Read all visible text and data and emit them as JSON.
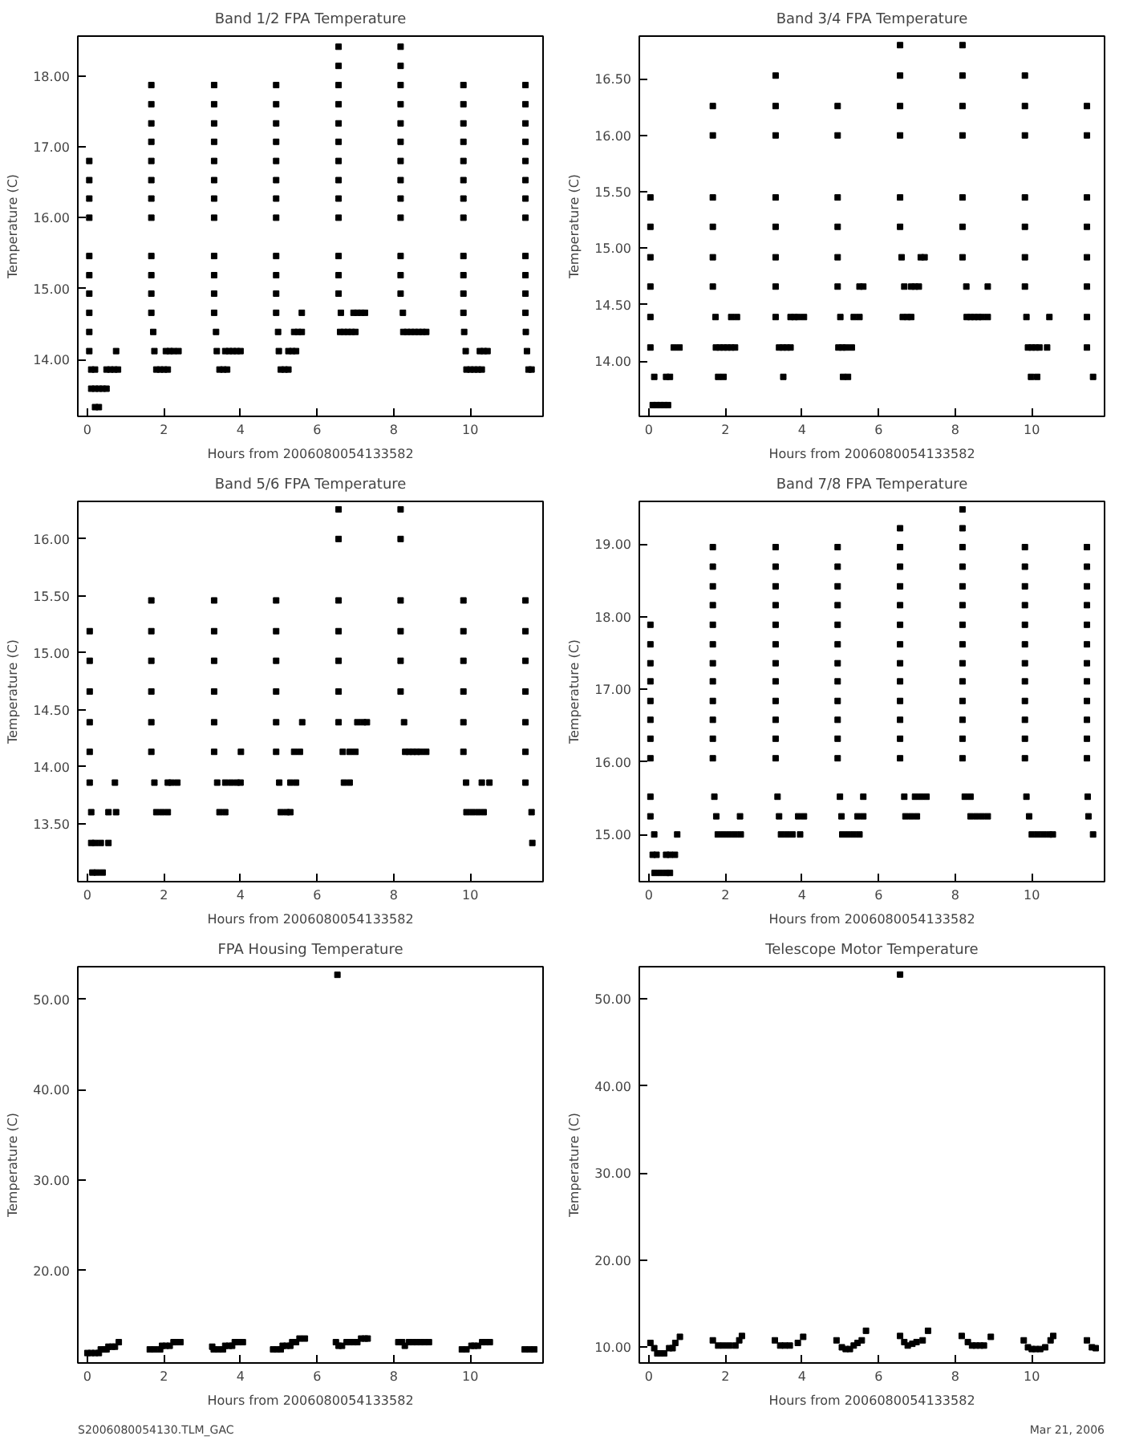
{
  "chart_data": [
    {
      "type": "scatter",
      "title": "Band 1/2 FPA Temperature",
      "xlabel": "Hours from 2006080054133582",
      "ylabel": "Temperature (C)",
      "marker": "square",
      "xlim": [
        -0.25,
        11.9
      ],
      "xticks": [
        0,
        2,
        4,
        6,
        8,
        10
      ],
      "ylim": [
        13.2,
        18.56
      ],
      "yticks": [
        {
          "value": 14,
          "label": "14.00"
        },
        {
          "value": 15,
          "label": "15.00"
        },
        {
          "value": 16,
          "label": "16.00"
        },
        {
          "value": 17,
          "label": "17.00"
        },
        {
          "value": 18,
          "label": "18.00"
        }
      ],
      "series": [
        {
          "color": "#000000",
          "x": [
            0.05,
            0.05,
            0.05,
            0.05,
            0.05,
            0.05,
            0.05,
            0.05,
            0.05,
            0.05,
            0.1,
            0.2,
            0.1,
            0.2,
            0.3,
            0.4,
            0.5,
            0.2,
            0.3,
            0.5,
            0.6,
            0.7,
            0.8,
            0.75
          ],
          "values": [
            16.8,
            16.53,
            16.27,
            16.0,
            15.46,
            15.19,
            14.93,
            14.66,
            14.39,
            14.12,
            13.86,
            13.86,
            13.59,
            13.59,
            13.59,
            13.59,
            13.59,
            13.33,
            13.33,
            13.86,
            13.86,
            13.86,
            13.86,
            14.12
          ]
        },
        {
          "color": "#000000",
          "x": [
            1.67,
            1.67,
            1.67,
            1.67,
            1.67,
            1.67,
            1.67,
            1.67,
            1.67,
            1.67,
            1.67,
            1.67,
            1.72,
            1.75,
            1.8,
            1.9,
            2.0,
            2.1,
            2.05,
            2.15,
            2.25,
            2.38
          ],
          "values": [
            17.87,
            17.6,
            17.33,
            17.07,
            16.8,
            16.53,
            16.27,
            16.0,
            15.46,
            15.19,
            14.93,
            14.66,
            14.39,
            14.12,
            13.86,
            13.86,
            13.86,
            13.86,
            14.12,
            14.12,
            14.12,
            14.12
          ]
        },
        {
          "color": "#000000",
          "x": [
            3.31,
            3.31,
            3.31,
            3.31,
            3.31,
            3.31,
            3.31,
            3.31,
            3.31,
            3.31,
            3.31,
            3.31,
            3.36,
            3.38,
            3.45,
            3.55,
            3.65,
            3.6,
            3.7,
            3.8,
            3.9,
            4.0
          ],
          "values": [
            17.87,
            17.6,
            17.33,
            17.07,
            16.8,
            16.53,
            16.27,
            16.0,
            15.46,
            15.19,
            14.93,
            14.66,
            14.39,
            14.12,
            13.86,
            13.86,
            13.86,
            14.12,
            14.12,
            14.12,
            14.12,
            14.12
          ]
        },
        {
          "color": "#000000",
          "x": [
            4.93,
            4.93,
            4.93,
            4.93,
            4.93,
            4.93,
            4.93,
            4.93,
            4.93,
            4.93,
            4.93,
            4.93,
            4.98,
            5.0,
            5.05,
            5.15,
            5.25,
            5.25,
            5.35,
            5.45,
            5.4,
            5.5,
            5.6,
            5.6
          ],
          "values": [
            17.87,
            17.6,
            17.33,
            17.07,
            16.8,
            16.53,
            16.27,
            16.0,
            15.46,
            15.19,
            14.93,
            14.66,
            14.39,
            14.12,
            13.86,
            13.86,
            13.86,
            14.12,
            14.12,
            14.12,
            14.39,
            14.39,
            14.39,
            14.66
          ]
        },
        {
          "color": "#000000",
          "x": [
            6.56,
            6.56,
            6.56,
            6.56,
            6.56,
            6.56,
            6.56,
            6.56,
            6.56,
            6.56,
            6.56,
            6.56,
            6.56,
            6.62,
            6.6,
            6.7,
            6.8,
            6.9,
            7.0,
            6.95,
            7.05,
            7.15,
            7.25
          ],
          "values": [
            18.41,
            18.14,
            17.87,
            17.6,
            17.33,
            17.07,
            16.8,
            16.53,
            16.27,
            16.0,
            15.46,
            15.19,
            14.93,
            14.66,
            14.39,
            14.39,
            14.39,
            14.39,
            14.39,
            14.66,
            14.66,
            14.66,
            14.66
          ]
        },
        {
          "color": "#000000",
          "x": [
            8.18,
            8.18,
            8.18,
            8.18,
            8.18,
            8.18,
            8.18,
            8.18,
            8.18,
            8.18,
            8.18,
            8.18,
            8.18,
            8.24,
            8.25,
            8.35,
            8.45,
            8.55,
            8.65,
            8.75,
            8.85
          ],
          "values": [
            18.41,
            18.14,
            17.87,
            17.6,
            17.33,
            17.07,
            16.8,
            16.53,
            16.27,
            16.0,
            15.46,
            15.19,
            14.93,
            14.66,
            14.39,
            14.39,
            14.39,
            14.39,
            14.39,
            14.39,
            14.39
          ]
        },
        {
          "color": "#000000",
          "x": [
            9.82,
            9.82,
            9.82,
            9.82,
            9.82,
            9.82,
            9.82,
            9.82,
            9.82,
            9.82,
            9.82,
            9.82,
            9.84,
            9.88,
            9.9,
            10.0,
            10.1,
            10.2,
            10.3,
            10.25,
            10.35,
            10.45
          ],
          "values": [
            17.87,
            17.6,
            17.33,
            17.07,
            16.8,
            16.53,
            16.27,
            16.0,
            15.46,
            15.19,
            14.93,
            14.66,
            14.39,
            14.12,
            13.86,
            13.86,
            13.86,
            13.86,
            13.86,
            14.12,
            14.12,
            14.12
          ]
        },
        {
          "color": "#000000",
          "x": [
            11.44,
            11.44,
            11.44,
            11.44,
            11.44,
            11.44,
            11.44,
            11.44,
            11.44,
            11.44,
            11.44,
            11.44,
            11.45,
            11.48,
            11.52,
            11.6
          ],
          "values": [
            17.87,
            17.6,
            17.33,
            17.07,
            16.8,
            16.53,
            16.27,
            16.0,
            15.46,
            15.19,
            14.93,
            14.66,
            14.39,
            14.12,
            13.86,
            13.86
          ]
        }
      ]
    },
    {
      "type": "scatter",
      "title": "Band 3/4 FPA Temperature",
      "xlabel": "Hours from 2006080054133582",
      "ylabel": "Temperature (C)",
      "marker": "square",
      "xlim": [
        -0.25,
        11.9
      ],
      "xticks": [
        0,
        2,
        4,
        6,
        8,
        10
      ],
      "ylim": [
        13.51,
        16.88
      ],
      "yticks": [
        {
          "value": 14,
          "label": "14.00"
        },
        {
          "value": 14.5,
          "label": "14.50"
        },
        {
          "value": 15,
          "label": "15.00"
        },
        {
          "value": 15.5,
          "label": "15.50"
        },
        {
          "value": 16,
          "label": "16.00"
        },
        {
          "value": 16.5,
          "label": "16.50"
        }
      ],
      "series": [
        {
          "color": "#000000",
          "x": [
            0.04,
            0.04,
            0.04,
            0.04,
            0.04,
            0.04,
            0.14,
            0.1,
            0.2,
            0.3,
            0.4,
            0.5,
            0.45,
            0.55,
            0.65,
            0.8
          ],
          "values": [
            15.45,
            15.19,
            14.92,
            14.66,
            14.39,
            14.12,
            13.86,
            13.61,
            13.61,
            13.61,
            13.61,
            13.61,
            13.86,
            13.86,
            14.12,
            14.12
          ]
        },
        {
          "color": "#000000",
          "x": [
            1.67,
            1.67,
            1.67,
            1.67,
            1.67,
            1.67,
            1.74,
            1.75,
            1.85,
            1.95,
            2.05,
            2.15,
            2.25,
            1.81,
            1.95,
            2.15,
            2.3
          ],
          "values": [
            16.26,
            16.0,
            15.45,
            15.19,
            14.92,
            14.66,
            14.39,
            14.12,
            14.12,
            14.12,
            14.12,
            14.12,
            14.12,
            13.86,
            13.86,
            14.39,
            14.39
          ]
        },
        {
          "color": "#000000",
          "x": [
            3.31,
            3.31,
            3.31,
            3.31,
            3.31,
            3.31,
            3.31,
            3.31,
            3.4,
            3.5,
            3.6,
            3.7,
            3.51,
            3.7,
            3.8,
            3.9,
            4.05
          ],
          "values": [
            16.53,
            16.26,
            16.0,
            15.45,
            15.19,
            14.92,
            14.66,
            14.39,
            14.12,
            14.12,
            14.12,
            14.12,
            13.86,
            14.39,
            14.39,
            14.39,
            14.39
          ]
        },
        {
          "color": "#000000",
          "x": [
            4.93,
            4.93,
            4.93,
            4.93,
            4.93,
            4.93,
            5.0,
            4.95,
            5.05,
            5.15,
            5.3,
            5.07,
            5.2,
            5.35,
            5.5,
            5.5,
            5.6
          ],
          "values": [
            16.26,
            16.0,
            15.45,
            15.19,
            14.92,
            14.66,
            14.39,
            14.12,
            14.12,
            14.12,
            14.12,
            13.86,
            13.86,
            14.39,
            14.39,
            14.66,
            14.66
          ]
        },
        {
          "color": "#000000",
          "x": [
            6.56,
            6.56,
            6.56,
            6.56,
            6.56,
            6.56,
            6.6,
            6.67,
            6.63,
            6.75,
            6.85,
            6.85,
            6.95,
            7.05,
            7.1,
            7.2
          ],
          "values": [
            16.8,
            16.53,
            16.26,
            16.0,
            15.45,
            15.19,
            14.92,
            14.66,
            14.39,
            14.39,
            14.39,
            14.66,
            14.66,
            14.66,
            14.92,
            14.92
          ]
        },
        {
          "color": "#000000",
          "x": [
            8.19,
            8.19,
            8.19,
            8.19,
            8.19,
            8.19,
            8.19,
            8.29,
            8.3,
            8.4,
            8.5,
            8.6,
            8.7,
            8.85,
            8.85
          ],
          "values": [
            16.8,
            16.53,
            16.26,
            16.0,
            15.45,
            15.19,
            14.92,
            14.66,
            14.39,
            14.39,
            14.39,
            14.39,
            14.39,
            14.39,
            14.66
          ]
        },
        {
          "color": "#000000",
          "x": [
            9.82,
            9.82,
            9.82,
            9.82,
            9.82,
            9.82,
            9.82,
            9.86,
            9.9,
            10.0,
            10.1,
            10.2,
            10.4,
            9.98,
            10.14,
            10.46
          ],
          "values": [
            16.53,
            16.26,
            16.0,
            15.45,
            15.19,
            14.92,
            14.66,
            14.39,
            14.12,
            14.12,
            14.12,
            14.12,
            14.12,
            13.86,
            13.86,
            14.39
          ]
        },
        {
          "color": "#000000",
          "x": [
            11.44,
            11.44,
            11.44,
            11.44,
            11.44,
            11.44,
            11.44,
            11.44,
            11.6
          ],
          "values": [
            16.26,
            16.0,
            15.45,
            15.19,
            14.92,
            14.66,
            14.39,
            14.12,
            13.86
          ]
        }
      ]
    },
    {
      "type": "scatter",
      "title": "Band 5/6 FPA Temperature",
      "xlabel": "Hours from 2006080054133582",
      "ylabel": "Temperature (C)",
      "marker": "square",
      "xlim": [
        -0.25,
        11.9
      ],
      "xticks": [
        0,
        2,
        4,
        6,
        8,
        10
      ],
      "ylim": [
        12.99,
        16.33
      ],
      "yticks": [
        {
          "value": 13.5,
          "label": "13.50"
        },
        {
          "value": 14,
          "label": "14.00"
        },
        {
          "value": 14.5,
          "label": "14.50"
        },
        {
          "value": 15,
          "label": "15.00"
        },
        {
          "value": 15.5,
          "label": "15.50"
        },
        {
          "value": 16,
          "label": "16.00"
        }
      ],
      "series": [
        {
          "color": "#000000",
          "x": [
            0.06,
            0.06,
            0.06,
            0.06,
            0.06,
            0.06,
            0.1,
            0.1,
            0.2,
            0.13,
            0.25,
            0.4,
            0.35,
            0.55,
            0.55,
            0.75,
            0.72
          ],
          "values": [
            15.19,
            14.93,
            14.66,
            14.39,
            14.13,
            13.86,
            13.6,
            13.33,
            13.33,
            13.07,
            13.07,
            13.07,
            13.33,
            13.33,
            13.6,
            13.6,
            13.86
          ]
        },
        {
          "color": "#000000",
          "x": [
            1.67,
            1.67,
            1.67,
            1.67,
            1.67,
            1.67,
            1.75,
            1.8,
            1.95,
            2.1,
            2.1,
            2.2,
            2.35
          ],
          "values": [
            15.46,
            15.19,
            14.93,
            14.66,
            14.39,
            14.13,
            13.86,
            13.6,
            13.6,
            13.6,
            13.86,
            13.86,
            13.86
          ]
        },
        {
          "color": "#000000",
          "x": [
            3.31,
            3.31,
            3.31,
            3.31,
            3.31,
            3.31,
            3.39,
            3.45,
            3.6,
            3.6,
            3.75,
            3.9,
            4.0,
            4.01
          ],
          "values": [
            15.46,
            15.19,
            14.93,
            14.66,
            14.39,
            14.13,
            13.86,
            13.6,
            13.6,
            13.86,
            13.86,
            13.86,
            13.86,
            14.13
          ]
        },
        {
          "color": "#000000",
          "x": [
            4.93,
            4.93,
            4.93,
            4.93,
            4.93,
            4.93,
            5.01,
            5.05,
            5.2,
            5.3,
            5.3,
            5.45,
            5.4,
            5.55,
            5.61
          ],
          "values": [
            15.46,
            15.19,
            14.93,
            14.66,
            14.39,
            14.13,
            13.86,
            13.6,
            13.6,
            13.6,
            13.86,
            13.86,
            14.13,
            14.13,
            14.39
          ]
        },
        {
          "color": "#000000",
          "x": [
            6.56,
            6.56,
            6.56,
            6.56,
            6.56,
            6.56,
            6.56,
            6.67,
            6.7,
            6.85,
            6.85,
            7.0,
            7.05,
            7.2,
            7.3
          ],
          "values": [
            16.26,
            16.0,
            15.46,
            15.19,
            14.93,
            14.66,
            14.39,
            14.13,
            13.86,
            13.86,
            14.13,
            14.13,
            14.39,
            14.39,
            14.39
          ]
        },
        {
          "color": "#000000",
          "x": [
            8.18,
            8.18,
            8.18,
            8.18,
            8.18,
            8.18,
            8.27,
            8.3,
            8.4,
            8.5,
            8.6,
            8.7,
            8.85
          ],
          "values": [
            16.26,
            16.0,
            15.46,
            15.19,
            14.93,
            14.66,
            14.39,
            14.13,
            14.13,
            14.13,
            14.13,
            14.13,
            14.13
          ]
        },
        {
          "color": "#000000",
          "x": [
            9.82,
            9.82,
            9.82,
            9.82,
            9.82,
            9.82,
            9.89,
            9.9,
            10.05,
            10.2,
            10.35,
            10.3,
            10.5
          ],
          "values": [
            15.46,
            15.19,
            14.93,
            14.66,
            14.39,
            14.13,
            13.86,
            13.6,
            13.6,
            13.6,
            13.6,
            13.86,
            13.86
          ]
        },
        {
          "color": "#000000",
          "x": [
            11.44,
            11.44,
            11.44,
            11.44,
            11.44,
            11.44,
            11.44,
            11.6,
            11.62
          ],
          "values": [
            15.46,
            15.19,
            14.93,
            14.66,
            14.39,
            14.13,
            13.86,
            13.6,
            13.33
          ]
        }
      ]
    },
    {
      "type": "scatter",
      "title": "Band 7/8 FPA Temperature",
      "xlabel": "Hours from 2006080054133582",
      "ylabel": "Temperature (C)",
      "marker": "square",
      "xlim": [
        -0.25,
        11.9
      ],
      "xticks": [
        0,
        2,
        4,
        6,
        8,
        10
      ],
      "ylim": [
        14.35,
        19.59
      ],
      "yticks": [
        {
          "value": 15,
          "label": "15.00"
        },
        {
          "value": 16,
          "label": "16.00"
        },
        {
          "value": 17,
          "label": "17.00"
        },
        {
          "value": 18,
          "label": "18.00"
        },
        {
          "value": 19,
          "label": "19.00"
        }
      ],
      "series": [
        {
          "color": "#000000",
          "x": [
            0.04,
            0.04,
            0.04,
            0.04,
            0.04,
            0.04,
            0.04,
            0.04,
            0.04,
            0.04,
            0.14,
            0.1,
            0.2,
            0.45,
            0.55,
            0.68,
            0.15,
            0.3,
            0.45,
            0.55,
            0.74
          ],
          "values": [
            17.89,
            17.62,
            17.36,
            17.11,
            16.84,
            16.58,
            16.32,
            16.05,
            15.52,
            15.25,
            15.0,
            14.72,
            14.72,
            14.72,
            14.72,
            14.72,
            14.47,
            14.47,
            14.47,
            14.47,
            15.0
          ]
        },
        {
          "color": "#000000",
          "x": [
            1.67,
            1.67,
            1.67,
            1.67,
            1.67,
            1.67,
            1.67,
            1.67,
            1.67,
            1.67,
            1.67,
            1.67,
            1.71,
            1.76,
            1.8,
            1.95,
            2.1,
            2.25,
            2.4,
            2.38
          ],
          "values": [
            18.96,
            18.69,
            18.42,
            18.16,
            17.89,
            17.62,
            17.36,
            17.11,
            16.84,
            16.58,
            16.32,
            16.05,
            15.52,
            15.25,
            15.0,
            15.0,
            15.0,
            15.0,
            15.0,
            15.25
          ]
        },
        {
          "color": "#000000",
          "x": [
            3.31,
            3.31,
            3.31,
            3.31,
            3.31,
            3.31,
            3.31,
            3.31,
            3.31,
            3.31,
            3.31,
            3.31,
            3.36,
            3.4,
            3.45,
            3.6,
            3.75,
            3.95,
            3.9,
            4.05
          ],
          "values": [
            18.96,
            18.69,
            18.42,
            18.16,
            17.89,
            17.62,
            17.36,
            17.11,
            16.84,
            16.58,
            16.32,
            16.05,
            15.52,
            15.25,
            15.0,
            15.0,
            15.0,
            15.0,
            15.25,
            15.25
          ]
        },
        {
          "color": "#000000",
          "x": [
            4.93,
            4.93,
            4.93,
            4.93,
            4.93,
            4.93,
            4.93,
            4.93,
            4.93,
            4.93,
            4.93,
            4.93,
            4.99,
            5.03,
            5.05,
            5.2,
            5.35,
            5.5,
            5.45,
            5.6,
            5.6
          ],
          "values": [
            18.96,
            18.69,
            18.42,
            18.16,
            17.89,
            17.62,
            17.36,
            17.11,
            16.84,
            16.58,
            16.32,
            16.05,
            15.52,
            15.25,
            15.0,
            15.0,
            15.0,
            15.0,
            15.25,
            15.25,
            15.52
          ]
        },
        {
          "color": "#000000",
          "x": [
            6.56,
            6.56,
            6.56,
            6.56,
            6.56,
            6.56,
            6.56,
            6.56,
            6.56,
            6.56,
            6.56,
            6.56,
            6.56,
            6.67,
            6.7,
            6.85,
            7.0,
            6.95,
            7.1,
            7.25
          ],
          "values": [
            19.22,
            18.96,
            18.69,
            18.42,
            18.16,
            17.89,
            17.62,
            17.36,
            17.11,
            16.84,
            16.58,
            16.32,
            16.05,
            15.52,
            15.25,
            15.25,
            15.25,
            15.52,
            15.52,
            15.52
          ]
        },
        {
          "color": "#000000",
          "x": [
            8.19,
            8.19,
            8.19,
            8.19,
            8.19,
            8.19,
            8.19,
            8.19,
            8.19,
            8.19,
            8.19,
            8.19,
            8.19,
            8.19,
            8.25,
            8.4,
            8.4,
            8.55,
            8.7,
            8.85
          ],
          "values": [
            19.48,
            19.22,
            18.96,
            18.69,
            18.42,
            18.16,
            17.89,
            17.62,
            17.36,
            17.11,
            16.84,
            16.58,
            16.32,
            16.05,
            15.52,
            15.52,
            15.25,
            15.25,
            15.25,
            15.25
          ]
        },
        {
          "color": "#000000",
          "x": [
            9.82,
            9.82,
            9.82,
            9.82,
            9.82,
            9.82,
            9.82,
            9.82,
            9.82,
            9.82,
            9.82,
            9.82,
            9.86,
            9.93,
            10.0,
            10.15,
            10.3,
            10.45,
            10.55
          ],
          "values": [
            18.96,
            18.69,
            18.42,
            18.16,
            17.89,
            17.62,
            17.36,
            17.11,
            16.84,
            16.58,
            16.32,
            16.05,
            15.52,
            15.25,
            15.0,
            15.0,
            15.0,
            15.0,
            15.0
          ]
        },
        {
          "color": "#000000",
          "x": [
            11.44,
            11.44,
            11.44,
            11.44,
            11.44,
            11.44,
            11.44,
            11.44,
            11.44,
            11.44,
            11.44,
            11.44,
            11.46,
            11.48,
            11.6
          ],
          "values": [
            18.96,
            18.69,
            18.42,
            18.16,
            17.89,
            17.62,
            17.36,
            17.11,
            16.84,
            16.58,
            16.32,
            16.05,
            15.52,
            15.25,
            15.0
          ]
        }
      ]
    },
    {
      "type": "scatter",
      "title": "FPA Housing Temperature",
      "xlabel": "Hours from 2006080054133582",
      "ylabel": "Temperature (C)",
      "marker": "square",
      "xlim": [
        -0.25,
        11.9
      ],
      "xticks": [
        0,
        2,
        4,
        6,
        8,
        10
      ],
      "ylim": [
        9.8,
        53.6
      ],
      "yticks": [
        {
          "value": 20,
          "label": "20.00"
        },
        {
          "value": 30,
          "label": "30.00"
        },
        {
          "value": 40,
          "label": "40.00"
        },
        {
          "value": 50,
          "label": "50.00"
        }
      ],
      "annotations": [
        "S2006080054130.TLM_GAC"
      ],
      "series": [
        {
          "color": "#000000",
          "x": [
            0.0,
            0.1,
            0.2,
            0.3,
            0.35,
            0.45,
            0.5,
            0.55,
            0.65,
            0.72,
            0.82,
            1.63,
            1.75,
            1.9,
            1.95,
            2.05,
            2.15,
            2.25,
            2.3,
            2.43,
            3.26,
            3.3,
            3.42,
            3.54,
            3.6,
            3.7,
            3.78,
            3.85,
            3.95,
            4.06,
            4.85,
            4.95,
            5.05,
            5.1,
            5.2,
            5.3,
            5.35,
            5.45,
            5.54,
            5.68,
            6.49,
            6.56,
            6.65,
            6.77,
            6.85,
            6.95,
            7.05,
            7.15,
            7.25,
            7.32,
            8.12,
            8.22,
            8.29,
            8.4,
            8.5,
            8.6,
            8.7,
            8.8,
            8.92,
            9.78,
            9.9,
            10.03,
            10.1,
            10.2,
            10.31,
            10.4,
            10.51,
            11.42,
            11.55,
            11.67,
            6.53
          ],
          "values": [
            10.9,
            10.9,
            10.9,
            10.9,
            11.3,
            11.3,
            11.3,
            11.6,
            11.6,
            11.6,
            12.1,
            11.3,
            11.3,
            11.3,
            11.7,
            11.7,
            11.7,
            12.1,
            12.1,
            12.1,
            11.6,
            11.3,
            11.3,
            11.3,
            11.7,
            11.7,
            11.7,
            12.1,
            12.1,
            12.1,
            11.3,
            11.3,
            11.3,
            11.7,
            11.7,
            11.7,
            12.1,
            12.1,
            12.5,
            12.5,
            12.1,
            11.7,
            11.7,
            12.1,
            12.1,
            12.1,
            12.1,
            12.5,
            12.5,
            12.5,
            12.1,
            12.1,
            11.7,
            12.1,
            12.1,
            12.1,
            12.1,
            12.1,
            12.1,
            11.3,
            11.3,
            11.7,
            11.7,
            11.7,
            12.1,
            12.1,
            12.1,
            11.3,
            11.3,
            11.3,
            52.7
          ]
        }
      ]
    },
    {
      "type": "scatter",
      "title": "Telescope Motor Temperature",
      "xlabel": "Hours from 2006080054133582",
      "ylabel": "Temperature (C)",
      "marker": "square",
      "xlim": [
        -0.25,
        11.9
      ],
      "xticks": [
        0,
        2,
        4,
        6,
        8,
        10
      ],
      "ylim": [
        8.2,
        53.7
      ],
      "yticks": [
        {
          "value": 10,
          "label": "10.00"
        },
        {
          "value": 20,
          "label": "20.00"
        },
        {
          "value": 30,
          "label": "30.00"
        },
        {
          "value": 40,
          "label": "40.00"
        },
        {
          "value": 50,
          "label": "50.00"
        }
      ],
      "annotations": [
        "Mar 21, 2006"
      ],
      "series": [
        {
          "color": "#000000",
          "x": [
            0.04,
            0.14,
            0.22,
            0.3,
            0.4,
            0.53,
            0.62,
            0.69,
            0.81,
            1.67,
            1.81,
            1.95,
            2.1,
            2.26,
            2.36,
            2.43,
            3.29,
            3.43,
            3.55,
            3.68,
            3.89,
            4.03,
            4.9,
            5.04,
            5.14,
            5.25,
            5.35,
            5.45,
            5.56,
            5.67,
            6.56,
            6.67,
            6.76,
            6.88,
            6.99,
            7.15,
            7.29,
            8.17,
            8.33,
            8.44,
            8.54,
            8.65,
            8.75,
            8.93,
            9.79,
            9.9,
            10.0,
            10.1,
            10.22,
            10.35,
            10.49,
            10.56,
            11.44,
            11.57,
            11.67,
            6.56
          ],
          "values": [
            10.5,
            9.9,
            9.3,
            9.3,
            9.3,
            9.9,
            9.9,
            10.5,
            11.2,
            10.8,
            10.2,
            10.2,
            10.2,
            10.2,
            10.8,
            11.3,
            10.8,
            10.2,
            10.2,
            10.2,
            10.5,
            11.2,
            10.8,
            10.0,
            9.8,
            9.8,
            10.2,
            10.5,
            10.8,
            11.9,
            11.3,
            10.6,
            10.2,
            10.4,
            10.6,
            10.8,
            11.9,
            11.3,
            10.6,
            10.2,
            10.2,
            10.2,
            10.2,
            11.2,
            10.8,
            10.0,
            9.8,
            9.8,
            9.8,
            10.0,
            10.8,
            11.3,
            10.8,
            10.0,
            9.9,
            52.8
          ]
        }
      ]
    }
  ]
}
